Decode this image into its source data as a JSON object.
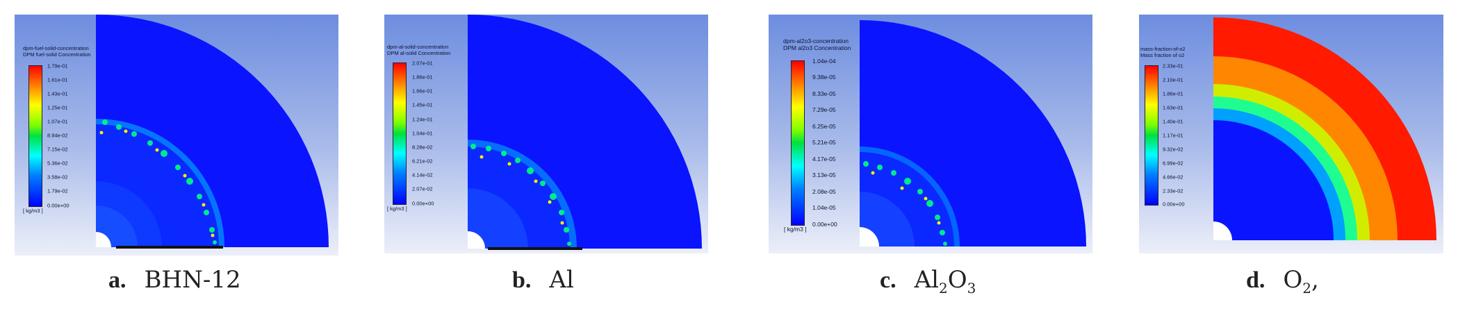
{
  "panels": [
    {
      "id": "a",
      "legend_title_line1": "dpm-fuel-solid-concentration",
      "legend_title_line2": "DPM fuel-solid Concentration",
      "ticks": [
        "1.79e-01",
        "1.61e-01",
        "1.43e-01",
        "1.25e-01",
        "1.07e-01",
        "8.94e-02",
        "7.15e-02",
        "5.36e-02",
        "3.58e-02",
        "1.79e-02",
        "0.00e+00"
      ],
      "unit": "[ kg/m3 ]",
      "caption_label": "a.",
      "caption_text": "BHN-12"
    },
    {
      "id": "b",
      "legend_title_line1": "dpm-al-solid-concentration",
      "legend_title_line2": "DPM al-solid Concentration",
      "ticks": [
        "2.07e-01",
        "1.86e-01",
        "1.66e-01",
        "1.45e-01",
        "1.24e-01",
        "1.04e-01",
        "8.28e-02",
        "6.21e-02",
        "4.14e-02",
        "2.07e-02",
        "0.00e+00"
      ],
      "unit": "[ kg/m3 ]",
      "caption_label": "b.",
      "caption_text": "Al"
    },
    {
      "id": "c",
      "legend_title_line1": "dpm-al2o3-concentration",
      "legend_title_line2": "DPM al2o3 Concentration",
      "ticks": [
        "1.04e-04",
        "9.38e-05",
        "8.33e-05",
        "7.29e-05",
        "6.25e-05",
        "5.21e-05",
        "4.17e-05",
        "3.13e-05",
        "2.08e-05",
        "1.04e-05",
        "0.00e+00"
      ],
      "unit": "[ kg/m3 ]",
      "caption_label": "c.",
      "caption_text_a": "Al",
      "caption_sub_a": "2",
      "caption_text_b": "O",
      "caption_sub_b": "3"
    },
    {
      "id": "d",
      "legend_title_line1": "mass-fraction-of-o2",
      "legend_title_line2": "Mass fraction of o2",
      "ticks": [
        "2.33e-01",
        "2.10e-01",
        "1.86e-01",
        "1.63e-01",
        "1.40e-01",
        "1.17e-01",
        "9.32e-02",
        "6.99e-02",
        "4.66e-02",
        "2.33e-02",
        "0.00e+00"
      ],
      "caption_label": "d.",
      "caption_text": "O",
      "caption_sub": "2",
      "caption_tail": ","
    }
  ],
  "colors": {
    "background_top": "#6f8ee0",
    "background_bottom": "#eef0fa",
    "domain_blue": "#0a14ff",
    "hot_red": "#ff1a00"
  }
}
